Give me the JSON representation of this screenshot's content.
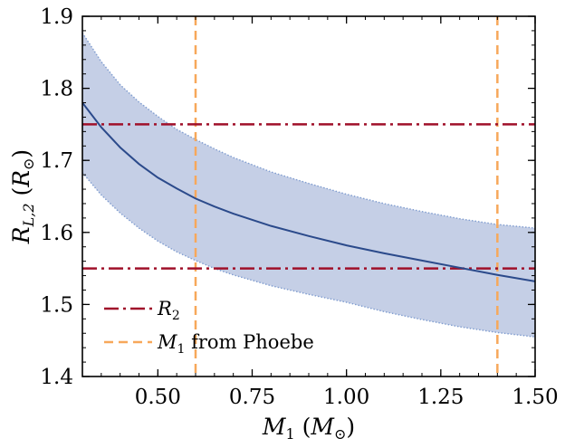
{
  "chart_data": {
    "type": "line",
    "title": "",
    "xlabel": {
      "main": "M",
      "sub": "1",
      "unit": "M",
      "unit_sub": "⊙"
    },
    "ylabel": {
      "main": "R",
      "sub": "L,2",
      "unit": "R",
      "unit_sub": "⊙"
    },
    "xlim": [
      0.3,
      1.5
    ],
    "ylim": [
      1.4,
      1.9
    ],
    "xticks": [
      0.5,
      0.75,
      1.0,
      1.25,
      1.5
    ],
    "xtick_labels": [
      "0.50",
      "0.75",
      "1.00",
      "1.25",
      "1.50"
    ],
    "yticks": [
      1.4,
      1.5,
      1.6,
      1.7,
      1.8,
      1.9
    ],
    "ytick_labels": [
      "1.4",
      "1.5",
      "1.6",
      "1.7",
      "1.8",
      "1.9"
    ],
    "x_minor_step": 0.05,
    "y_minor_step": 0.02,
    "grid": false,
    "legend_position": "bottom-left",
    "series": [
      {
        "kind": "line",
        "color": "#2b4a8b",
        "x": [
          0.3,
          0.35,
          0.4,
          0.45,
          0.5,
          0.55,
          0.6,
          0.65,
          0.7,
          0.8,
          0.9,
          1.0,
          1.1,
          1.2,
          1.3,
          1.4,
          1.5
        ],
        "y": [
          1.78,
          1.746,
          1.718,
          1.695,
          1.676,
          1.661,
          1.647,
          1.636,
          1.626,
          1.609,
          1.595,
          1.582,
          1.571,
          1.561,
          1.551,
          1.541,
          1.532
        ]
      },
      {
        "kind": "band",
        "color": "#c5cfe6",
        "edge_color": "#7f9ccf",
        "x": [
          0.3,
          0.35,
          0.4,
          0.45,
          0.5,
          0.55,
          0.6,
          0.65,
          0.7,
          0.8,
          0.9,
          1.0,
          1.1,
          1.2,
          1.3,
          1.4,
          1.5
        ],
        "upper": [
          1.877,
          1.837,
          1.805,
          1.781,
          1.761,
          1.743,
          1.729,
          1.716,
          1.704,
          1.684,
          1.668,
          1.653,
          1.64,
          1.629,
          1.619,
          1.611,
          1.606
        ],
        "lower": [
          1.683,
          1.652,
          1.627,
          1.606,
          1.588,
          1.573,
          1.561,
          1.55,
          1.541,
          1.526,
          1.514,
          1.503,
          1.49,
          1.479,
          1.469,
          1.461,
          1.455
        ]
      }
    ],
    "hlines": [
      {
        "y": 1.75,
        "color": "#a0102a",
        "style": "dashdot"
      },
      {
        "y": 1.55,
        "color": "#a0102a",
        "style": "dashdot"
      }
    ],
    "vlines": [
      {
        "x": 0.6,
        "color": "#f7a85a",
        "style": "dashed"
      },
      {
        "x": 1.4,
        "color": "#f7a85a",
        "style": "dashed"
      }
    ],
    "legend": [
      {
        "main": "R",
        "sub": "2",
        "rest": "",
        "color": "#a0102a",
        "style": "dashdot"
      },
      {
        "main": "M",
        "sub": "1",
        "rest": " from Phoebe",
        "color": "#f7a85a",
        "style": "dashed"
      }
    ]
  }
}
